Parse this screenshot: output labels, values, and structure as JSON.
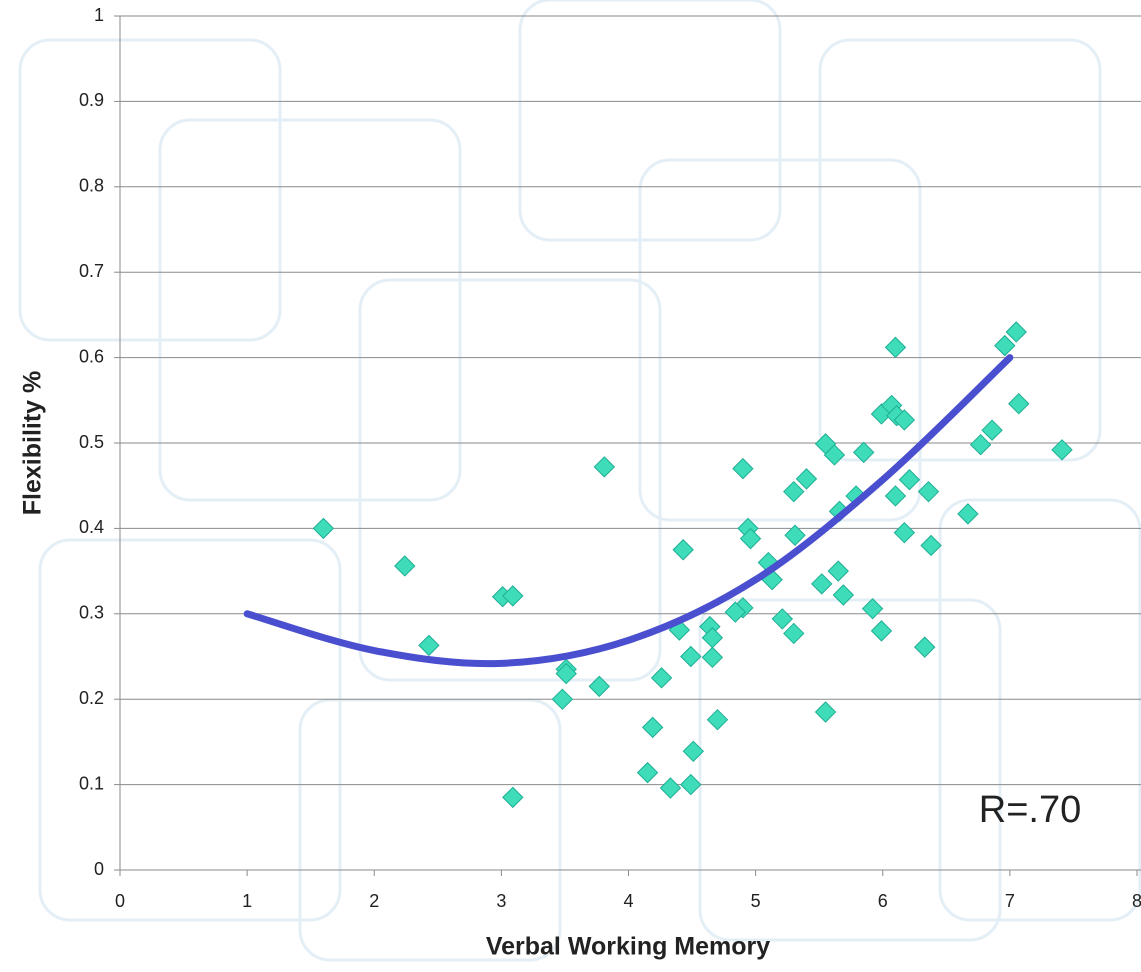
{
  "chart_data": {
    "type": "scatter",
    "xlabel": "Verbal Working Memory",
    "ylabel": "Flexibility %",
    "annotation": "R=.70",
    "color": "#3edcb9",
    "x": [
      1.6,
      2.24,
      2.43,
      3.01,
      3.09,
      3.09,
      3.81,
      3.51,
      3.51,
      3.48,
      3.77,
      4.19,
      4.15,
      4.26,
      4.33,
      4.49,
      4.43,
      4.4,
      4.49,
      4.64,
      4.66,
      4.66,
      4.7,
      4.51,
      4.9,
      4.84,
      4.9,
      4.94,
      4.96,
      5.1,
      5.13,
      5.21,
      5.3,
      5.31,
      5.3,
      5.4,
      5.55,
      5.62,
      5.52,
      5.65,
      5.69,
      5.66,
      5.55,
      5.79,
      5.85,
      5.92,
      5.99,
      5.99,
      6.07,
      6.11,
      6.17,
      6.1,
      6.1,
      6.21,
      6.17,
      6.36,
      6.38,
      6.33,
      6.67,
      6.77,
      6.86,
      6.96,
      7.05,
      7.07,
      7.41
    ],
    "values": [
      0.4,
      0.356,
      0.263,
      0.32,
      0.321,
      0.085,
      0.472,
      0.235,
      0.23,
      0.2,
      0.215,
      0.167,
      0.114,
      0.225,
      0.096,
      0.1,
      0.375,
      0.281,
      0.25,
      0.285,
      0.272,
      0.249,
      0.176,
      0.139,
      0.307,
      0.302,
      0.47,
      0.4,
      0.388,
      0.36,
      0.34,
      0.294,
      0.277,
      0.392,
      0.443,
      0.458,
      0.499,
      0.486,
      0.335,
      0.35,
      0.322,
      0.42,
      0.185,
      0.438,
      0.489,
      0.306,
      0.28,
      0.534,
      0.544,
      0.532,
      0.527,
      0.612,
      0.438,
      0.457,
      0.395,
      0.443,
      0.38,
      0.261,
      0.417,
      0.498,
      0.515,
      0.614,
      0.63,
      0.546,
      0.492
    ],
    "trend": {
      "color": "#4a4fcf",
      "x": [
        1,
        2,
        3,
        4,
        5,
        6,
        7
      ],
      "values": [
        0.3,
        0.257,
        0.242,
        0.269,
        0.34,
        0.457,
        0.6
      ]
    },
    "xlim": [
      0,
      8
    ],
    "ylim": [
      0,
      1
    ],
    "xticks": [
      0,
      1,
      2,
      3,
      4,
      5,
      6,
      7,
      8
    ],
    "yticks": [
      0,
      0.1,
      0.2,
      0.3,
      0.4,
      0.5,
      0.6,
      0.7,
      0.8,
      0.9,
      1
    ],
    "grid": true
  }
}
